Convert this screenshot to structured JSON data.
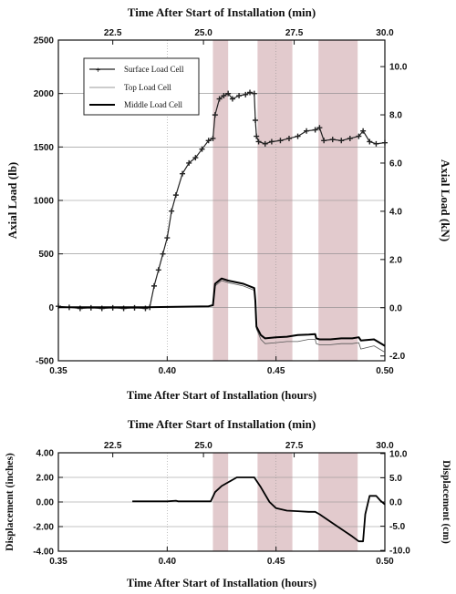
{
  "colors": {
    "axis": "#111111",
    "grid": "#888888",
    "shade": "#d8b8bc",
    "surface": "#222222",
    "top": "#555555",
    "middle": "#000000"
  },
  "shaded_intervals_hours": [
    [
      0.421,
      0.428
    ],
    [
      0.4415,
      0.4575
    ],
    [
      0.4695,
      0.4875
    ]
  ],
  "chart_data": [
    {
      "type": "line",
      "xlabel": "Time After Start of Installation (hours)",
      "x2label": "Time After Start of Installation (min)",
      "ylabel": "Axial Load (lb)",
      "y2label": "Axial Load (kN)",
      "xlim": [
        0.35,
        0.5
      ],
      "ylim": [
        -500,
        2500
      ],
      "y2lim": [
        -2.2,
        11.1
      ],
      "xticks": [
        "0.35",
        "0.40",
        "0.45",
        "0.50"
      ],
      "yticks": [
        "-500",
        "0",
        "500",
        "1000",
        "1500",
        "2000",
        "2500"
      ],
      "y2ticks": [
        "-2.0",
        "0.0",
        "2.0",
        "4.0",
        "6.0",
        "8.0",
        "10.0"
      ],
      "x2ticks": [
        "22.5",
        "25.0",
        "27.5",
        "30.0"
      ],
      "legend_position": "top-left",
      "series": [
        {
          "name": "Surface Load Cell",
          "x": [
            0.35,
            0.355,
            0.36,
            0.365,
            0.37,
            0.375,
            0.38,
            0.385,
            0.39,
            0.392,
            0.394,
            0.396,
            0.398,
            0.4,
            0.402,
            0.404,
            0.407,
            0.41,
            0.413,
            0.416,
            0.419,
            0.421,
            0.422,
            0.424,
            0.426,
            0.428,
            0.43,
            0.433,
            0.436,
            0.438,
            0.44,
            0.4405,
            0.441,
            0.442,
            0.445,
            0.448,
            0.452,
            0.456,
            0.46,
            0.464,
            0.468,
            0.47,
            0.472,
            0.476,
            0.48,
            0.484,
            0.488,
            0.49,
            0.493,
            0.496,
            0.5
          ],
          "y": [
            10,
            0,
            -10,
            -5,
            -10,
            -5,
            -10,
            -5,
            -10,
            0,
            200,
            350,
            500,
            650,
            900,
            1050,
            1250,
            1350,
            1400,
            1480,
            1560,
            1580,
            1800,
            1950,
            1980,
            2000,
            1950,
            1980,
            1990,
            2010,
            2000,
            1750,
            1600,
            1550,
            1530,
            1550,
            1560,
            1580,
            1600,
            1650,
            1660,
            1680,
            1560,
            1570,
            1560,
            1580,
            1600,
            1650,
            1550,
            1530,
            1540
          ]
        },
        {
          "name": "Top Load Cell",
          "x": [
            0.35,
            0.39,
            0.419,
            0.421,
            0.422,
            0.425,
            0.428,
            0.435,
            0.44,
            0.4405,
            0.441,
            0.443,
            0.445,
            0.45,
            0.455,
            0.46,
            0.465,
            0.468,
            0.4685,
            0.47,
            0.475,
            0.48,
            0.485,
            0.488,
            0.489,
            0.495,
            0.5
          ],
          "y": [
            0,
            0,
            10,
            20,
            200,
            250,
            230,
            200,
            160,
            50,
            -200,
            -300,
            -340,
            -330,
            -320,
            -320,
            -300,
            -300,
            -340,
            -350,
            -350,
            -340,
            -340,
            -330,
            -390,
            -360,
            -420
          ]
        },
        {
          "name": "Middle Load Cell",
          "x": [
            0.35,
            0.39,
            0.419,
            0.421,
            0.422,
            0.425,
            0.428,
            0.435,
            0.44,
            0.4405,
            0.441,
            0.443,
            0.445,
            0.45,
            0.455,
            0.46,
            0.465,
            0.468,
            0.4685,
            0.47,
            0.475,
            0.48,
            0.485,
            0.488,
            0.489,
            0.495,
            0.5
          ],
          "y": [
            0,
            0,
            10,
            20,
            220,
            270,
            250,
            220,
            180,
            60,
            -180,
            -260,
            -290,
            -280,
            -275,
            -260,
            -255,
            -250,
            -290,
            -300,
            -300,
            -290,
            -290,
            -280,
            -310,
            -300,
            -360
          ]
        }
      ]
    },
    {
      "type": "line",
      "xlabel": "Time After Start of Installation (hours)",
      "x2label": "Time After Start of Installation (min)",
      "ylabel": "Displacement (inches)",
      "y2label": "Displacement (cm)",
      "xlim": [
        0.35,
        0.5
      ],
      "ylim": [
        -4,
        4
      ],
      "y2lim": [
        -10.16,
        10.16
      ],
      "xticks": [
        "0.35",
        "0.40",
        "0.45",
        "0.50"
      ],
      "yticks": [
        "-4.00",
        "-2.00",
        "0.00",
        "2.00",
        "4.00"
      ],
      "y2ticks": [
        "-10.0",
        "-5.0",
        "0.0",
        "5.0",
        "10.0"
      ],
      "x2ticks": [
        "22.5",
        "25.0",
        "27.5",
        "30.0"
      ],
      "series": [
        {
          "name": "",
          "x": [
            0.384,
            0.4,
            0.404,
            0.405,
            0.42,
            0.422,
            0.425,
            0.428,
            0.432,
            0.44,
            0.443,
            0.447,
            0.45,
            0.455,
            0.46,
            0.465,
            0.468,
            0.47,
            0.475,
            0.48,
            0.485,
            0.488,
            0.49,
            0.491,
            0.493,
            0.496,
            0.498,
            0.5
          ],
          "y": [
            0.05,
            0.05,
            0.1,
            0.05,
            0.05,
            0.8,
            1.3,
            1.6,
            2.0,
            2.0,
            1.2,
            0.0,
            -0.5,
            -0.7,
            -0.75,
            -0.8,
            -0.8,
            -1.0,
            -1.6,
            -2.2,
            -2.8,
            -3.2,
            -3.2,
            -1.0,
            0.5,
            0.5,
            0.1,
            -0.2
          ]
        }
      ]
    }
  ]
}
